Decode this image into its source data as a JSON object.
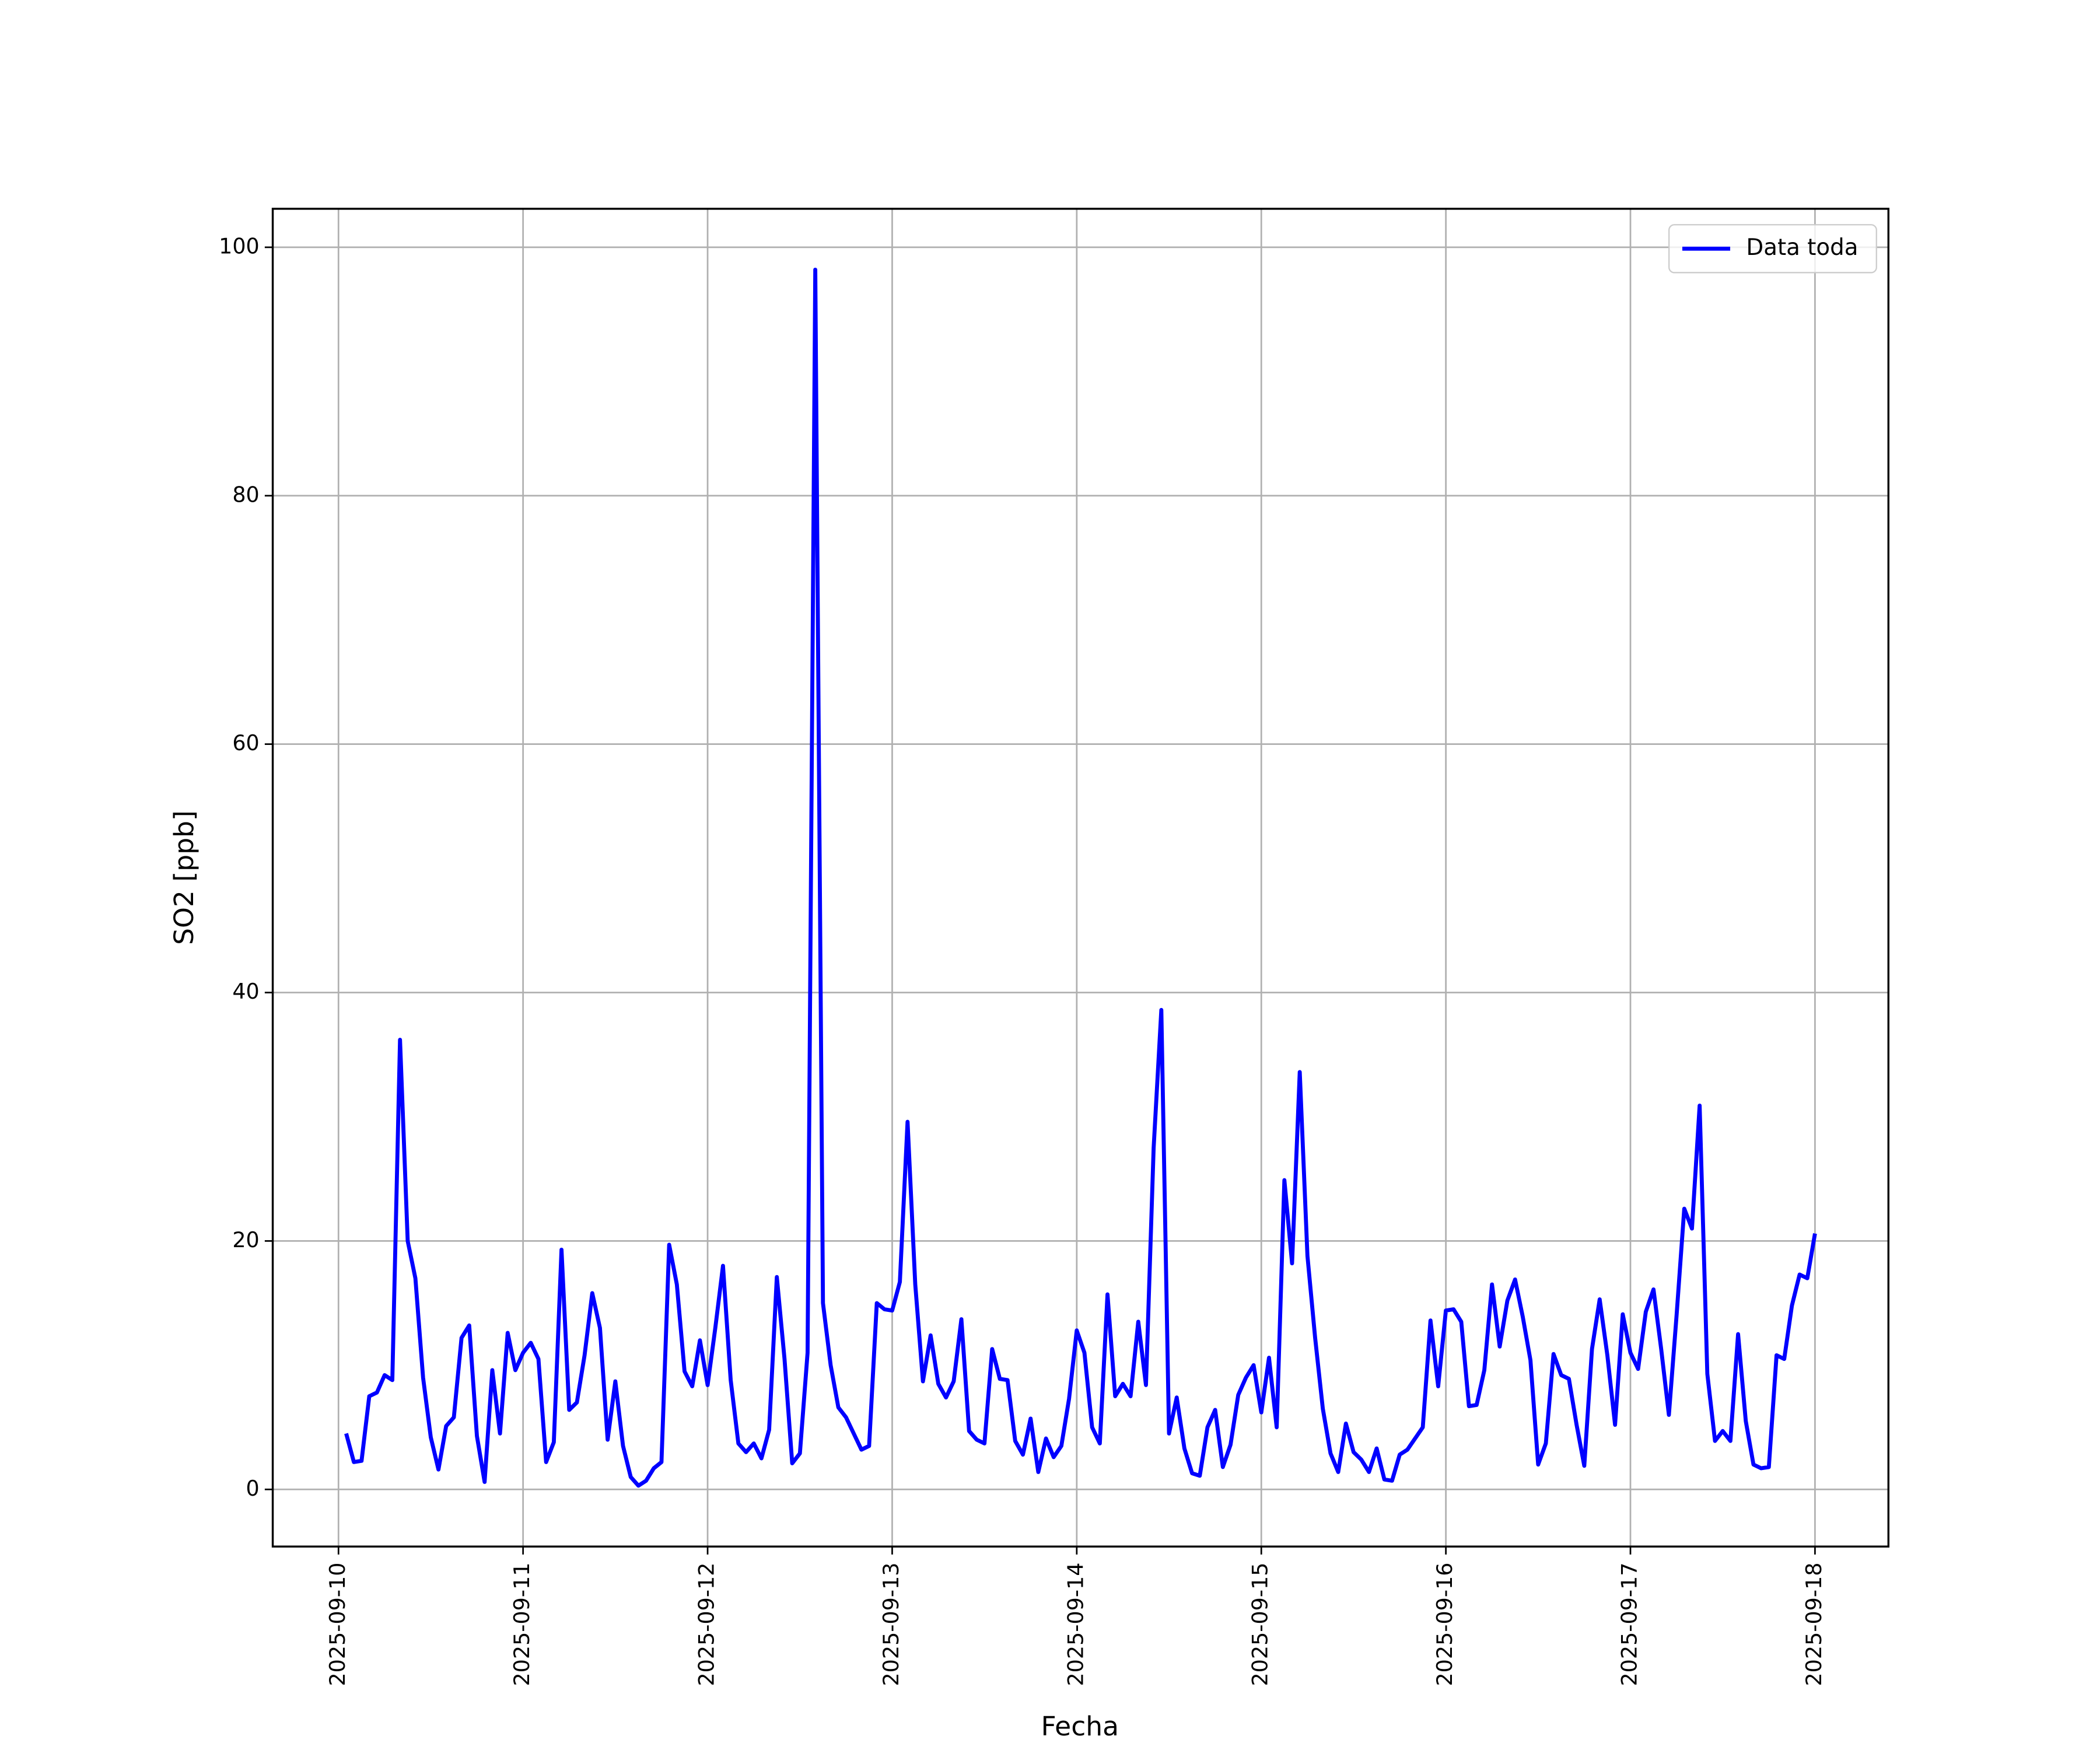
{
  "chart_data": {
    "type": "line",
    "xlabel": "Fecha",
    "ylabel": "SO2 [ppb]",
    "x": [
      "2025-09-10 01:00",
      "2025-09-10 02:00",
      "2025-09-10 03:00",
      "2025-09-10 04:00",
      "2025-09-10 05:00",
      "2025-09-10 06:00",
      "2025-09-10 07:00",
      "2025-09-10 08:00",
      "2025-09-10 09:00",
      "2025-09-10 10:00",
      "2025-09-10 11:00",
      "2025-09-10 12:00",
      "2025-09-10 13:00",
      "2025-09-10 14:00",
      "2025-09-10 15:00",
      "2025-09-10 16:00",
      "2025-09-10 17:00",
      "2025-09-10 18:00",
      "2025-09-10 19:00",
      "2025-09-10 20:00",
      "2025-09-10 21:00",
      "2025-09-10 22:00",
      "2025-09-10 23:00",
      "2025-09-11 00:00",
      "2025-09-11 01:00",
      "2025-09-11 02:00",
      "2025-09-11 03:00",
      "2025-09-11 04:00",
      "2025-09-11 05:00",
      "2025-09-11 06:00",
      "2025-09-11 07:00",
      "2025-09-11 08:00",
      "2025-09-11 09:00",
      "2025-09-11 10:00",
      "2025-09-11 11:00",
      "2025-09-11 12:00",
      "2025-09-11 13:00",
      "2025-09-11 14:00",
      "2025-09-11 15:00",
      "2025-09-11 16:00",
      "2025-09-11 17:00",
      "2025-09-11 18:00",
      "2025-09-11 19:00",
      "2025-09-11 20:00",
      "2025-09-11 21:00",
      "2025-09-11 22:00",
      "2025-09-11 23:00",
      "2025-09-12 00:00",
      "2025-09-12 01:00",
      "2025-09-12 02:00",
      "2025-09-12 03:00",
      "2025-09-12 04:00",
      "2025-09-12 05:00",
      "2025-09-12 06:00",
      "2025-09-12 07:00",
      "2025-09-12 08:00",
      "2025-09-12 09:00",
      "2025-09-12 10:00",
      "2025-09-12 11:00",
      "2025-09-12 12:00",
      "2025-09-12 13:00",
      "2025-09-12 14:00",
      "2025-09-12 15:00",
      "2025-09-12 16:00",
      "2025-09-12 17:00",
      "2025-09-12 18:00",
      "2025-09-12 19:00",
      "2025-09-12 20:00",
      "2025-09-12 21:00",
      "2025-09-12 22:00",
      "2025-09-12 23:00",
      "2025-09-13 00:00",
      "2025-09-13 01:00",
      "2025-09-13 02:00",
      "2025-09-13 03:00",
      "2025-09-13 04:00",
      "2025-09-13 05:00",
      "2025-09-13 06:00",
      "2025-09-13 07:00",
      "2025-09-13 08:00",
      "2025-09-13 09:00",
      "2025-09-13 10:00",
      "2025-09-13 11:00",
      "2025-09-13 12:00",
      "2025-09-13 13:00",
      "2025-09-13 14:00",
      "2025-09-13 15:00",
      "2025-09-13 16:00",
      "2025-09-13 17:00",
      "2025-09-13 18:00",
      "2025-09-13 19:00",
      "2025-09-13 20:00",
      "2025-09-13 21:00",
      "2025-09-13 22:00",
      "2025-09-13 23:00",
      "2025-09-14 00:00",
      "2025-09-14 01:00",
      "2025-09-14 02:00",
      "2025-09-14 03:00",
      "2025-09-14 04:00",
      "2025-09-14 05:00",
      "2025-09-14 06:00",
      "2025-09-14 07:00",
      "2025-09-14 08:00",
      "2025-09-14 09:00",
      "2025-09-14 10:00",
      "2025-09-14 11:00",
      "2025-09-14 12:00",
      "2025-09-14 13:00",
      "2025-09-14 14:00",
      "2025-09-14 15:00",
      "2025-09-14 16:00",
      "2025-09-14 17:00",
      "2025-09-14 18:00",
      "2025-09-14 19:00",
      "2025-09-14 20:00",
      "2025-09-14 21:00",
      "2025-09-14 22:00",
      "2025-09-14 23:00",
      "2025-09-15 00:00",
      "2025-09-15 01:00",
      "2025-09-15 02:00",
      "2025-09-15 03:00",
      "2025-09-15 04:00",
      "2025-09-15 05:00",
      "2025-09-15 06:00",
      "2025-09-15 07:00",
      "2025-09-15 08:00",
      "2025-09-15 09:00",
      "2025-09-15 10:00",
      "2025-09-15 11:00",
      "2025-09-15 12:00",
      "2025-09-15 13:00",
      "2025-09-15 14:00",
      "2025-09-15 15:00",
      "2025-09-15 16:00",
      "2025-09-15 17:00",
      "2025-09-15 18:00",
      "2025-09-15 19:00",
      "2025-09-15 20:00",
      "2025-09-15 21:00",
      "2025-09-15 22:00",
      "2025-09-15 23:00",
      "2025-09-16 00:00",
      "2025-09-16 01:00",
      "2025-09-16 02:00",
      "2025-09-16 03:00",
      "2025-09-16 04:00",
      "2025-09-16 05:00",
      "2025-09-16 06:00",
      "2025-09-16 07:00",
      "2025-09-16 08:00",
      "2025-09-16 09:00",
      "2025-09-16 10:00",
      "2025-09-16 11:00",
      "2025-09-16 12:00",
      "2025-09-16 13:00",
      "2025-09-16 14:00",
      "2025-09-16 15:00",
      "2025-09-16 16:00",
      "2025-09-16 17:00",
      "2025-09-16 18:00",
      "2025-09-16 19:00",
      "2025-09-16 20:00",
      "2025-09-16 21:00",
      "2025-09-16 22:00",
      "2025-09-16 23:00",
      "2025-09-17 00:00",
      "2025-09-17 01:00",
      "2025-09-17 02:00",
      "2025-09-17 03:00",
      "2025-09-17 04:00",
      "2025-09-17 05:00",
      "2025-09-17 06:00",
      "2025-09-17 07:00",
      "2025-09-17 08:00",
      "2025-09-17 09:00",
      "2025-09-17 10:00",
      "2025-09-17 11:00",
      "2025-09-17 12:00",
      "2025-09-17 13:00",
      "2025-09-17 14:00",
      "2025-09-17 15:00",
      "2025-09-17 16:00",
      "2025-09-17 17:00",
      "2025-09-17 18:00",
      "2025-09-17 19:00",
      "2025-09-17 20:00",
      "2025-09-17 21:00",
      "2025-09-17 22:00",
      "2025-09-17 23:00",
      "2025-09-18 00:00"
    ],
    "series": [
      {
        "name": "Data toda",
        "color": "#0000ff",
        "values": [
          4.5,
          2.2,
          2.3,
          7.5,
          7.8,
          9.2,
          8.8,
          36.2,
          20,
          17,
          9,
          4.2,
          1.6,
          5.1,
          5.8,
          12.2,
          13.2,
          4.3,
          0.6,
          9.6,
          4.5,
          12.6,
          9.6,
          11,
          11.8,
          10.5,
          2.2,
          3.8,
          19.3,
          6.4,
          7,
          10.8,
          15.8,
          13,
          4,
          8.7,
          3.5,
          1,
          0.3,
          0.7,
          1.7,
          2.2,
          19.7,
          16.5,
          9.5,
          8.3,
          12,
          8.4,
          13,
          18,
          8.8,
          3.7,
          3,
          3.7,
          2.5,
          4.8,
          17.1,
          10.5,
          2.1,
          2.9,
          11,
          98.2,
          15,
          10,
          6.6,
          5.8,
          4.5,
          3.2,
          3.5,
          15,
          14.5,
          14.4,
          16.7,
          29.6,
          16.5,
          8.7,
          12.4,
          8.5,
          7.4,
          8.7,
          13.7,
          4.7,
          4,
          3.7,
          11.3,
          8.9,
          8.8,
          3.9,
          2.8,
          5.7,
          1.4,
          4.1,
          2.6,
          3.5,
          7.3,
          12.8,
          11,
          5,
          3.7,
          15.7,
          7.5,
          8.5,
          7.5,
          13.5,
          8.4,
          27.5,
          38.6,
          4.5,
          7.4,
          3.3,
          1.3,
          1.1,
          5,
          6.4,
          1.8,
          3.6,
          7.6,
          9,
          10,
          6.2,
          10.6,
          5,
          24.9,
          18.2,
          33.6,
          18.8,
          12.2,
          6.5,
          2.9,
          1.4,
          5.3,
          3,
          2.4,
          1.4,
          3.3,
          0.8,
          0.7,
          2.8,
          3.2,
          4.1,
          5,
          13.6,
          8.3,
          14.4,
          14.5,
          13.5,
          6.7,
          6.8,
          9.6,
          16.5,
          11.5,
          15.2,
          16.9,
          13.9,
          10.4,
          2,
          3.7,
          10.9,
          9.2,
          8.9,
          5.2,
          1.9,
          11.3,
          15.3,
          10.8,
          5.2,
          14.1,
          11,
          9.7,
          14.3,
          16.1,
          11.3,
          6,
          14,
          22.6,
          21,
          30.9,
          9.3,
          3.9,
          4.7,
          3.9,
          12.5,
          5.5,
          2,
          1.7,
          1.8,
          10.8,
          10.5,
          14.8,
          17.3,
          17,
          20.6
        ]
      }
    ],
    "xlim": [
      "2025-09-09 15:27",
      "2025-09-18 09:33"
    ],
    "xticks": [
      "2025-09-10",
      "2025-09-11",
      "2025-09-12",
      "2025-09-13",
      "2025-09-14",
      "2025-09-15",
      "2025-09-16",
      "2025-09-17",
      "2025-09-18"
    ],
    "ylim": [
      -4.6,
      103.1
    ],
    "yticks": [
      0,
      20,
      40,
      60,
      80,
      100
    ],
    "grid": true,
    "legend": "upper right"
  }
}
